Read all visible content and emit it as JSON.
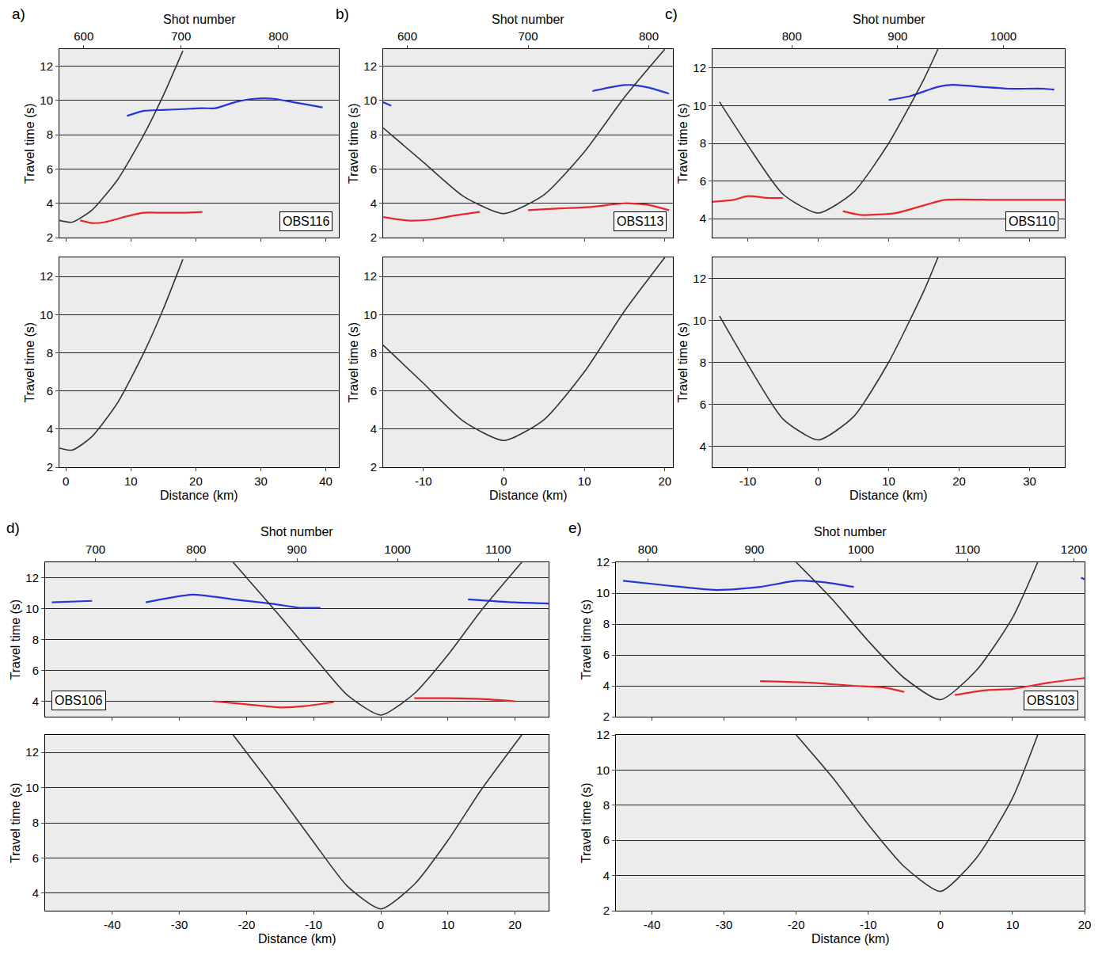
{
  "chart_data": [
    {
      "type": "line",
      "label": "a)",
      "station": "OBS116",
      "x_label": "Distance (km)",
      "x2_label": "Shot number",
      "y_label": "Travel time (s)",
      "xlim": [
        -1,
        42
      ],
      "xticks": [
        0,
        10,
        20,
        30,
        40
      ],
      "x2lim": [
        575,
        862
      ],
      "x2ticks": [
        600,
        700,
        800
      ],
      "ylim": [
        2,
        13
      ],
      "yticks": [
        2,
        4,
        6,
        8,
        10,
        12
      ],
      "grid": "y",
      "subplots": [
        {
          "series": [
            {
              "color": "#2436d8",
              "x": [
                9.4,
                12,
                15,
                18,
                21,
                23,
                26,
                29,
                32,
                35,
                38,
                39.5
              ],
              "values": [
                9.1,
                9.4,
                9.45,
                9.5,
                9.55,
                9.55,
                9.9,
                10.1,
                10.1,
                9.9,
                9.7,
                9.6
              ]
            },
            {
              "color": "#e8262b",
              "x": [
                2.2,
                4,
                6,
                8,
                10,
                12,
                15,
                18,
                21
              ],
              "values": [
                3.0,
                2.85,
                2.9,
                3.1,
                3.3,
                3.45,
                3.45,
                3.45,
                3.5
              ]
            },
            {
              "color": "#333333",
              "x": [
                -1,
                1,
                4,
                8,
                12,
                15,
                18
              ],
              "values": [
                3.0,
                2.9,
                3.6,
                5.4,
                8.0,
                10.3,
                12.9
              ]
            }
          ]
        },
        {
          "series": [
            {
              "color": "#333333",
              "x": [
                -1,
                1,
                4,
                8,
                12,
                15,
                18
              ],
              "values": [
                3.0,
                2.9,
                3.6,
                5.4,
                8.0,
                10.3,
                12.9
              ]
            }
          ]
        }
      ]
    },
    {
      "type": "line",
      "label": "b)",
      "station": "OBS113",
      "x_label": "Distance (km)",
      "x2_label": "Shot number",
      "y_label": "Travel time (s)",
      "xlim": [
        -15,
        21
      ],
      "xticks": [
        -10,
        0,
        10,
        20
      ],
      "x2lim": [
        580,
        820
      ],
      "x2ticks": [
        600,
        700,
        800
      ],
      "ylim": [
        2,
        13
      ],
      "yticks": [
        2,
        4,
        6,
        8,
        10,
        12
      ],
      "grid": "y",
      "subplots": [
        {
          "series": [
            {
              "color": "#2436d8",
              "x": [
                -15,
                -14,
                -1,
                11,
                13,
                15,
                16,
                18,
                20.5
              ],
              "values": [
                9.9,
                9.7,
                null,
                10.55,
                10.75,
                10.9,
                10.9,
                10.75,
                10.4
              ]
            },
            {
              "color": "#e8262b",
              "x": [
                -15,
                -12,
                -9,
                -6,
                -3,
                0,
                3,
                7,
                11,
                15,
                18,
                20.5
              ],
              "values": [
                3.2,
                3.0,
                3.05,
                3.3,
                3.5,
                null,
                3.6,
                3.7,
                3.8,
                4.0,
                3.9,
                3.6
              ]
            },
            {
              "color": "#333333",
              "x": [
                -15,
                -10,
                -5,
                0,
                5,
                10,
                15,
                20
              ],
              "values": [
                8.4,
                6.4,
                4.4,
                3.4,
                4.5,
                7.0,
                10.2,
                13
              ]
            }
          ]
        },
        {
          "series": [
            {
              "color": "#333333",
              "x": [
                -15,
                -10,
                -5,
                0,
                5,
                10,
                15,
                20
              ],
              "values": [
                8.4,
                6.4,
                4.4,
                3.4,
                4.5,
                7.0,
                10.2,
                13
              ]
            }
          ]
        }
      ]
    },
    {
      "type": "line",
      "label": "c)",
      "station": "OBS110",
      "x_label": "Distance (km)",
      "x2_label": "Shot number",
      "y_label": "Travel time (s)",
      "xlim": [
        -15,
        35
      ],
      "xticks": [
        -10,
        0,
        10,
        20,
        30
      ],
      "x2lim": [
        725,
        1058
      ],
      "x2ticks": [
        800,
        900,
        1000
      ],
      "ylim": [
        3,
        13
      ],
      "yticks": [
        4,
        6,
        8,
        10,
        12
      ],
      "grid": "y",
      "subplots": [
        {
          "series": [
            {
              "color": "#2436d8",
              "x": [
                10,
                13,
                17,
                19,
                23,
                27,
                32,
                33.5
              ],
              "values": [
                10.3,
                10.5,
                11.0,
                11.1,
                11.0,
                10.9,
                10.9,
                10.85
              ]
            },
            {
              "color": "#e8262b",
              "x": [
                -15,
                -12,
                -10,
                -7,
                -5,
                0,
                3.5,
                6,
                11,
                14,
                18,
                25,
                35
              ],
              "values": [
                4.9,
                5.0,
                5.2,
                5.1,
                5.1,
                null,
                4.4,
                4.2,
                4.3,
                4.6,
                5.0,
                5.0,
                5.0
              ]
            },
            {
              "color": "#333333",
              "x": [
                -14,
                -10,
                -5,
                0,
                5,
                10,
                15,
                17
              ],
              "values": [
                10.2,
                7.9,
                5.3,
                4.3,
                5.4,
                8.0,
                11.4,
                13
              ]
            }
          ]
        },
        {
          "series": [
            {
              "color": "#333333",
              "x": [
                -14,
                -10,
                -5,
                0,
                5,
                10,
                15,
                17
              ],
              "values": [
                10.2,
                7.9,
                5.3,
                4.3,
                5.4,
                8.0,
                11.4,
                13
              ]
            }
          ]
        }
      ]
    },
    {
      "type": "line",
      "label": "d)",
      "station": "OBS106",
      "x_label": "Distance (km)",
      "x2_label": "Shot number",
      "y_label": "Travel time (s)",
      "xlim": [
        -50,
        25
      ],
      "xticks": [
        -40,
        -30,
        -20,
        -10,
        0,
        10,
        20
      ],
      "x2lim": [
        650,
        1150
      ],
      "x2ticks": [
        700,
        800,
        900,
        1000,
        1100
      ],
      "ylim": [
        3,
        13
      ],
      "yticks": [
        4,
        6,
        8,
        10,
        12
      ],
      "grid": "y",
      "subplots": [
        {
          "series": [
            {
              "color": "#2436d8",
              "x": [
                -49,
                -43,
                -39,
                -35,
                -28,
                -22,
                -16,
                -12,
                -9,
                2,
                13,
                20,
                27
              ],
              "values": [
                10.4,
                10.5,
                null,
                10.4,
                10.9,
                10.6,
                10.3,
                10.05,
                10.05,
                null,
                10.6,
                10.4,
                10.3
              ]
            },
            {
              "color": "#e8262b",
              "x": [
                -25,
                -20,
                -15,
                -11,
                -7,
                -1,
                5,
                10,
                15,
                20
              ],
              "values": [
                4.0,
                3.8,
                3.6,
                3.7,
                3.95,
                null,
                4.2,
                4.2,
                4.15,
                4.0
              ]
            },
            {
              "color": "#333333",
              "x": [
                -22,
                -15,
                -10,
                -5,
                0,
                5,
                10,
                15,
                21
              ],
              "values": [
                13,
                9.5,
                6.9,
                4.4,
                3.1,
                4.5,
                7.0,
                9.9,
                13
              ]
            }
          ]
        },
        {
          "series": [
            {
              "color": "#333333",
              "x": [
                -22,
                -15,
                -10,
                -5,
                0,
                5,
                10,
                15,
                21
              ],
              "values": [
                13,
                9.5,
                6.9,
                4.4,
                3.1,
                4.5,
                7.0,
                9.9,
                13
              ]
            }
          ]
        }
      ]
    },
    {
      "type": "line",
      "label": "e)",
      "station": "OBS103",
      "x_label": "Distance (km)",
      "x2_label": "Shot number",
      "y_label": "Travel time (s)",
      "xlim": [
        -45,
        20
      ],
      "xticks": [
        -40,
        -30,
        -20,
        -10,
        0,
        10,
        20
      ],
      "x2lim": [
        770,
        1210
      ],
      "x2ticks": [
        800,
        900,
        1000,
        1100,
        1200
      ],
      "ylim": [
        2,
        12
      ],
      "yticks": [
        2,
        4,
        6,
        8,
        10,
        12
      ],
      "grid": "y",
      "subplots": [
        {
          "series": [
            {
              "color": "#2436d8",
              "x": [
                -44,
                -38,
                -31,
                -25,
                -20,
                -16,
                -12,
                4,
                19.5,
                20
              ],
              "values": [
                10.8,
                10.5,
                10.2,
                10.4,
                10.8,
                10.7,
                10.4,
                null,
                11.0,
                10.9
              ]
            },
            {
              "color": "#e8262b",
              "x": [
                -25,
                -18,
                -12,
                -8,
                -5,
                -1.5,
                2,
                6,
                10,
                15,
                20
              ],
              "values": [
                4.3,
                4.2,
                4.0,
                3.9,
                3.6,
                null,
                3.4,
                3.7,
                3.8,
                4.2,
                4.5
              ]
            },
            {
              "color": "#333333",
              "x": [
                -20,
                -15,
                -10,
                -5,
                0,
                5,
                10,
                13.5
              ],
              "values": [
                12,
                9.6,
                6.9,
                4.5,
                3.1,
                5.0,
                8.4,
                12
              ]
            }
          ]
        },
        {
          "series": [
            {
              "color": "#333333",
              "x": [
                -20,
                -15,
                -10,
                -5,
                0,
                5,
                10,
                13.5
              ],
              "values": [
                12,
                9.6,
                6.9,
                4.5,
                3.1,
                5.0,
                8.4,
                12
              ]
            }
          ]
        }
      ]
    }
  ]
}
